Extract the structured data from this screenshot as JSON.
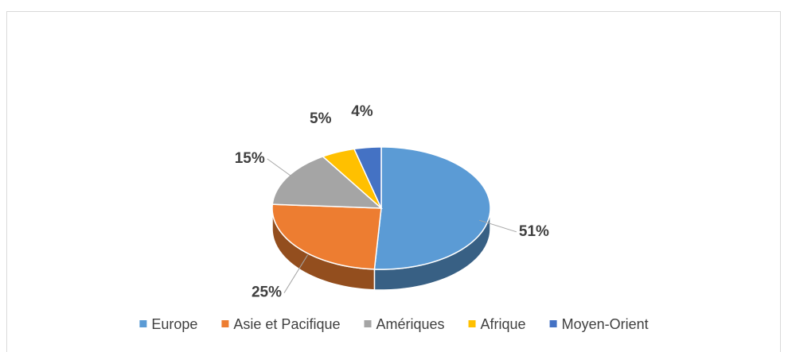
{
  "chart_data": {
    "type": "pie",
    "categories": [
      "Europe",
      "Asie et Pacifique",
      "Amériques",
      "Afrique",
      "Moyen-Orient"
    ],
    "values": [
      51,
      25,
      15,
      5,
      4
    ],
    "value_labels": [
      "51%",
      "25%",
      "15%",
      "5%",
      "4%"
    ],
    "colors": [
      "#5b9bd5",
      "#ed7d31",
      "#a5a5a5",
      "#ffc000",
      "#4472c4"
    ],
    "legend": "bottom"
  }
}
